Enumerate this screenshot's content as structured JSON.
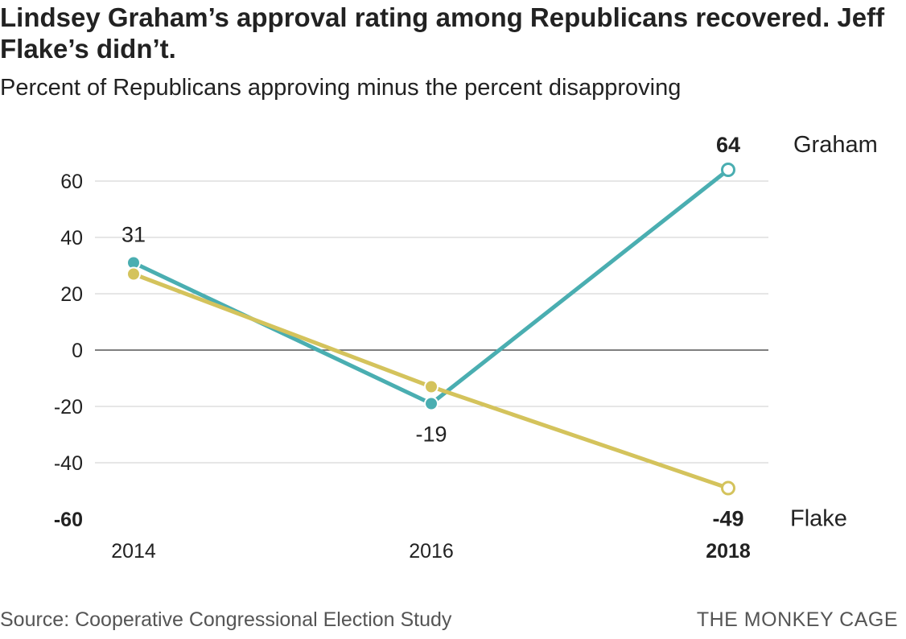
{
  "title": "Lindsey Graham’s approval rating among Republicans recovered. Jeff Flake’s didn’t.",
  "subtitle": "Percent of Republicans approving minus the percent disapproving",
  "source": "Source: Cooperative Congressional Election Study",
  "brand": "THE MONKEY CAGE",
  "chart_data": {
    "type": "line",
    "x": [
      2014,
      2016,
      2018
    ],
    "x_tick_labels": [
      "2014",
      "2016",
      "2018"
    ],
    "y_ticks": [
      60,
      40,
      20,
      0,
      -20,
      -40,
      -60
    ],
    "ylim": [
      -60,
      60
    ],
    "grid": true,
    "series": [
      {
        "name": "Graham",
        "color": "#4aaeb1",
        "values": [
          31,
          -19,
          64
        ],
        "point_labels": [
          "31",
          "-19",
          "64"
        ]
      },
      {
        "name": "Flake",
        "color": "#d4c35c",
        "values": [
          27,
          -13,
          -49
        ],
        "point_labels": [
          "",
          "",
          "-49"
        ]
      }
    ]
  }
}
